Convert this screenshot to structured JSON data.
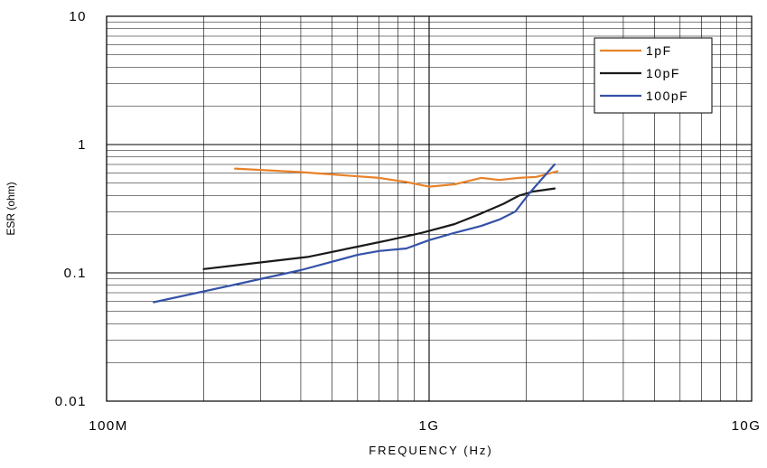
{
  "chart_data": {
    "type": "line",
    "title": "",
    "xlabel": "FREQUENCY (Hz)",
    "ylabel": "ESR (ohm)",
    "x_scale": "log",
    "y_scale": "log",
    "xlim": [
      100000000,
      10000000000
    ],
    "ylim": [
      0.01,
      10
    ],
    "grid": true,
    "legend_position": "top-right",
    "x_ticks": [
      {
        "value": 100000000,
        "label": "100M"
      },
      {
        "value": 1000000000,
        "label": "1G"
      },
      {
        "value": 10000000000,
        "label": "10G"
      }
    ],
    "y_ticks": [
      {
        "value": 10,
        "label": "10"
      },
      {
        "value": 1,
        "label": "1"
      },
      {
        "value": 0.1,
        "label": "0.1"
      },
      {
        "value": 0.01,
        "label": "0.01"
      }
    ],
    "series": [
      {
        "name": "1pF",
        "color": "#e8822a",
        "x": [
          250000000,
          400000000,
          700000000,
          850000000,
          1000000000,
          1200000000,
          1450000000,
          1650000000,
          1900000000,
          2150000000,
          2500000000
        ],
        "y": [
          0.65,
          0.61,
          0.55,
          0.51,
          0.47,
          0.49,
          0.55,
          0.53,
          0.55,
          0.56,
          0.62
        ]
      },
      {
        "name": "10pF",
        "color": "#1a1a1a",
        "x": [
          200000000,
          420000000,
          600000000,
          750000000,
          950000000,
          1200000000,
          1450000000,
          1700000000,
          1900000000,
          2100000000,
          2450000000
        ],
        "y": [
          0.107,
          0.133,
          0.16,
          0.18,
          0.205,
          0.24,
          0.29,
          0.345,
          0.4,
          0.43,
          0.455
        ]
      },
      {
        "name": "100pF",
        "color": "#3552a8",
        "x": [
          140000000,
          250000000,
          400000000,
          600000000,
          700000000,
          850000000,
          1000000000,
          1200000000,
          1450000000,
          1650000000,
          1850000000,
          2050000000,
          2450000000
        ],
        "y": [
          0.059,
          0.081,
          0.105,
          0.138,
          0.148,
          0.155,
          0.18,
          0.205,
          0.232,
          0.26,
          0.3,
          0.42,
          0.7
        ]
      }
    ]
  }
}
